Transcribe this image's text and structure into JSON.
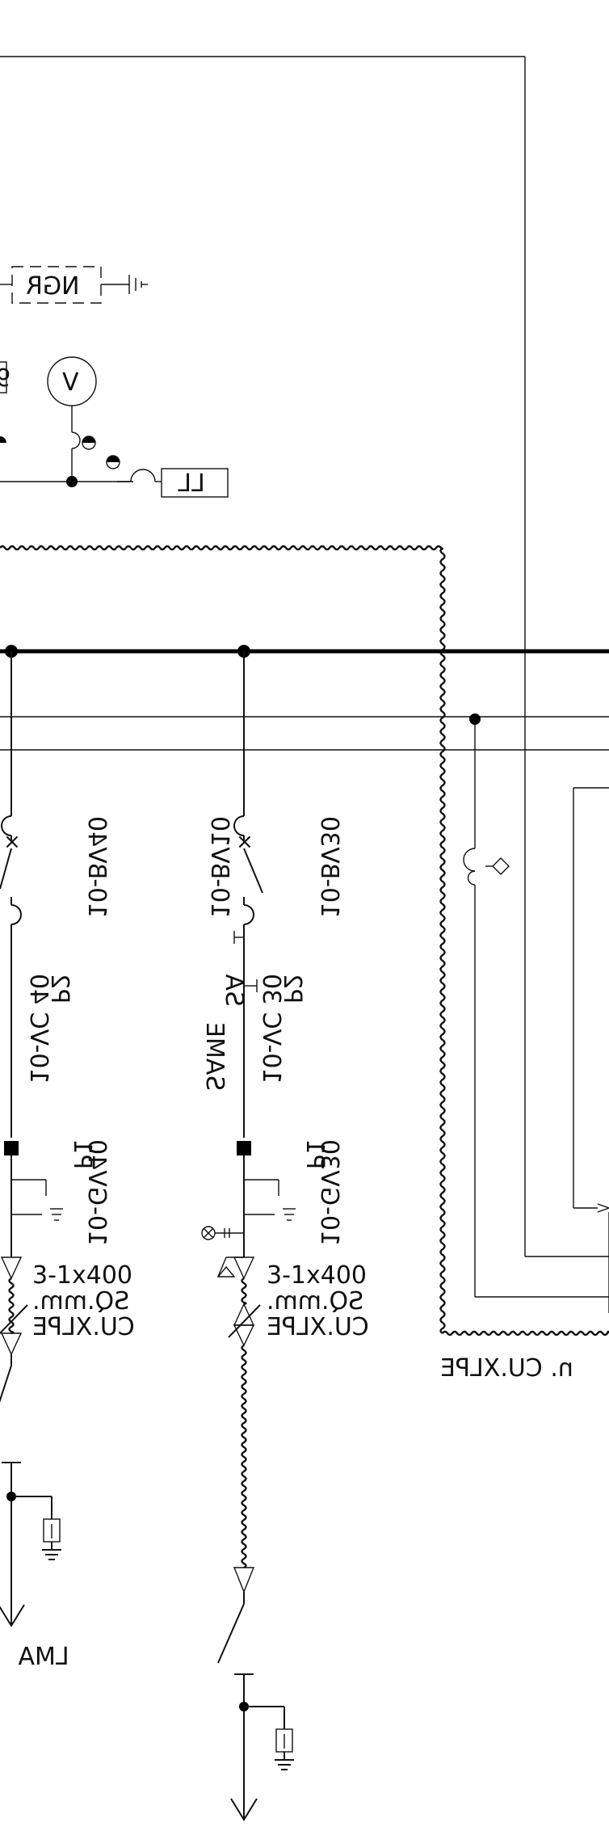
{
  "labels": {
    "ngr": "NGR",
    "voltmeter": "V",
    "relay_partial": "9",
    "ll_box": "LL",
    "feeder_right": {
      "breaker_id": "10-BV30",
      "tag_p2": "P2",
      "vc_id": "10-VC 30",
      "sa_text": "SA",
      "same_text": "SAME",
      "bv_id": "10-BV10",
      "tag_p1": "P1",
      "ground_id": "10-GV30",
      "cable_size": "3-1x400",
      "cable_unit": "SQ.mm.",
      "cable_type": "CU.XLPE"
    },
    "feeder_left": {
      "breaker_id": "10-BV40",
      "tag_p2": "P2",
      "vc_id": "10-VC 40",
      "tag_p1": "P1",
      "ground_id": "10-GV40",
      "cable_size": "3-1x400",
      "cable_unit": "SQ.mm.",
      "cable_type": "CU.XLPE",
      "load_label": "LMA"
    },
    "cable_right_partial": "n. CU.XLPE"
  },
  "icons": [
    "ground-icon",
    "voltmeter-icon",
    "breaker-icon",
    "surge-arrester-icon",
    "cable-termination-icon"
  ]
}
